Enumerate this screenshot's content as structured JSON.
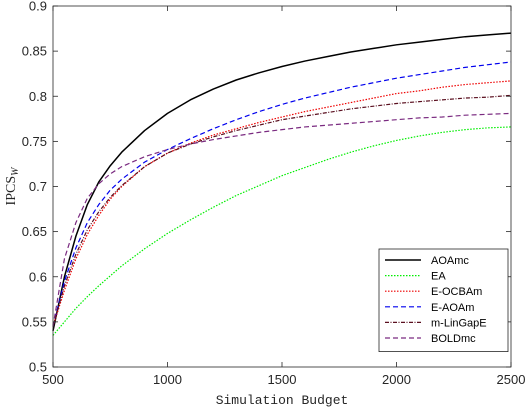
{
  "chart_data": {
    "type": "line",
    "xlabel": "Simulation Budget",
    "ylabel": "IPCS",
    "ylabel_sub": "W",
    "xlim": [
      500,
      2500
    ],
    "ylim": [
      0.5,
      0.9
    ],
    "xticks": [
      500,
      1000,
      1500,
      2000,
      2500
    ],
    "yticks": [
      0.5,
      0.55,
      0.6,
      0.65,
      0.7,
      0.75,
      0.8,
      0.85,
      0.9
    ],
    "grid": false,
    "legend_position": "bottom-right",
    "x": [
      500,
      550,
      600,
      650,
      700,
      750,
      800,
      900,
      1000,
      1100,
      1200,
      1300,
      1400,
      1500,
      1600,
      1700,
      1800,
      1900,
      2000,
      2100,
      2200,
      2300,
      2400,
      2500
    ],
    "series": [
      {
        "name": "AOAmc",
        "color": "#000000",
        "dash": "",
        "width": 1.5,
        "values": [
          0.54,
          0.6,
          0.645,
          0.68,
          0.705,
          0.723,
          0.738,
          0.762,
          0.781,
          0.796,
          0.808,
          0.818,
          0.826,
          0.833,
          0.839,
          0.844,
          0.849,
          0.853,
          0.857,
          0.86,
          0.863,
          0.866,
          0.868,
          0.87
        ]
      },
      {
        "name": "EA",
        "color": "#00ee00",
        "dash": "1.5,1.5",
        "width": 1.2,
        "values": [
          0.535,
          0.55,
          0.565,
          0.578,
          0.59,
          0.601,
          0.612,
          0.631,
          0.648,
          0.663,
          0.677,
          0.69,
          0.701,
          0.712,
          0.721,
          0.73,
          0.738,
          0.745,
          0.751,
          0.756,
          0.76,
          0.763,
          0.765,
          0.766
        ]
      },
      {
        "name": "E-OCBAm",
        "color": "#ee0000",
        "dash": "1.5,1.5",
        "width": 1.2,
        "values": [
          0.545,
          0.585,
          0.62,
          0.647,
          0.668,
          0.686,
          0.7,
          0.722,
          0.737,
          0.748,
          0.757,
          0.764,
          0.771,
          0.777,
          0.783,
          0.788,
          0.793,
          0.798,
          0.803,
          0.806,
          0.81,
          0.813,
          0.815,
          0.817
        ]
      },
      {
        "name": "E-AOAm",
        "color": "#0000ee",
        "dash": "5,3",
        "width": 1.2,
        "values": [
          0.545,
          0.595,
          0.632,
          0.66,
          0.68,
          0.696,
          0.708,
          0.727,
          0.741,
          0.753,
          0.764,
          0.774,
          0.783,
          0.791,
          0.798,
          0.804,
          0.81,
          0.815,
          0.82,
          0.824,
          0.828,
          0.832,
          0.835,
          0.838
        ]
      },
      {
        "name": "m-LinGapE",
        "color": "#5a0f1f",
        "dash": "4,1.5,1,1.5",
        "width": 1.2,
        "values": [
          0.545,
          0.59,
          0.625,
          0.652,
          0.672,
          0.688,
          0.701,
          0.722,
          0.737,
          0.747,
          0.755,
          0.762,
          0.768,
          0.774,
          0.778,
          0.782,
          0.786,
          0.789,
          0.792,
          0.794,
          0.796,
          0.798,
          0.799,
          0.801
        ]
      },
      {
        "name": "BOLDmc",
        "color": "#7a2a80",
        "dash": "5,3",
        "width": 1.2,
        "values": [
          0.545,
          0.62,
          0.66,
          0.687,
          0.703,
          0.714,
          0.722,
          0.733,
          0.741,
          0.747,
          0.752,
          0.756,
          0.76,
          0.763,
          0.766,
          0.768,
          0.77,
          0.772,
          0.774,
          0.776,
          0.777,
          0.779,
          0.78,
          0.781
        ]
      }
    ]
  }
}
